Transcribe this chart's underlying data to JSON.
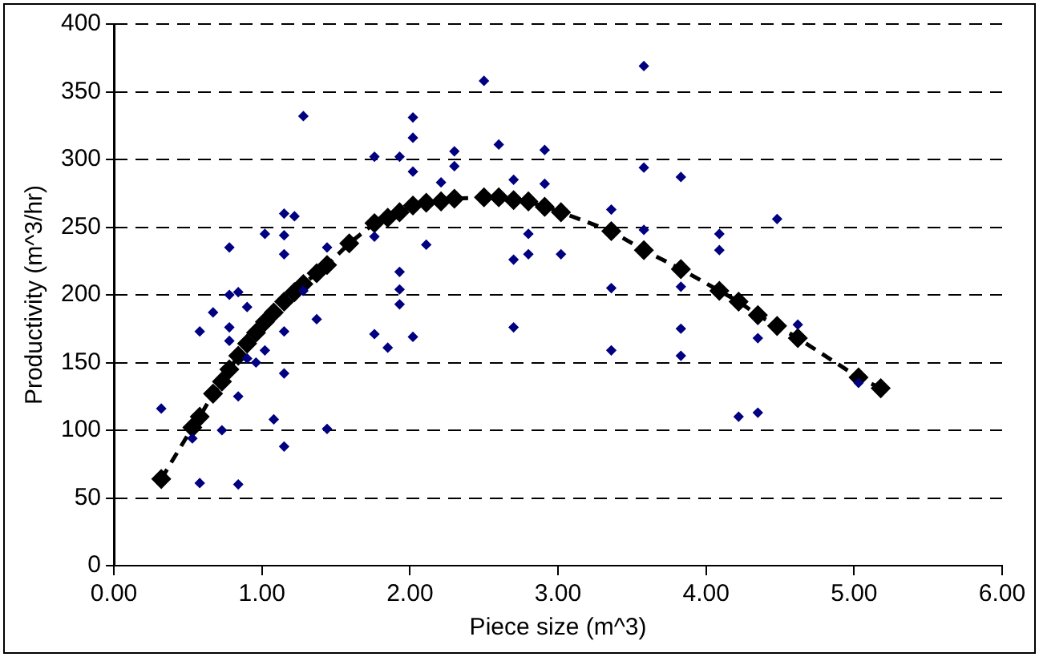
{
  "chart_data": {
    "type": "scatter",
    "xlabel": "Piece size (m^3)",
    "ylabel": "Productivity (m^3/hr)",
    "xlim": [
      0,
      6
    ],
    "ylim": [
      0,
      400
    ],
    "xticks": [
      {
        "value": 0,
        "label": "0.00"
      },
      {
        "value": 1,
        "label": "1.00"
      },
      {
        "value": 2,
        "label": "2.00"
      },
      {
        "value": 3,
        "label": "3.00"
      },
      {
        "value": 4,
        "label": "4.00"
      },
      {
        "value": 5,
        "label": "5.00"
      },
      {
        "value": 6,
        "label": "6.00"
      }
    ],
    "yticks": [
      0,
      50,
      100,
      150,
      200,
      250,
      300,
      350,
      400
    ],
    "grid": "y",
    "legend": false,
    "series": [
      {
        "color": "#000080",
        "marker": "diamond",
        "x": [
          0.32,
          0.53,
          0.58,
          0.58,
          0.67,
          0.73,
          0.78,
          0.78,
          0.78,
          0.78,
          0.84,
          0.84,
          0.84,
          0.9,
          0.9,
          0.96,
          1.02,
          1.02,
          1.08,
          1.15,
          1.15,
          1.15,
          1.15,
          1.15,
          1.15,
          1.22,
          1.28,
          1.28,
          1.37,
          1.44,
          1.44,
          1.76,
          1.76,
          1.76,
          1.85,
          1.93,
          1.93,
          1.93,
          1.93,
          2.02,
          2.02,
          2.02,
          2.02,
          2.11,
          2.21,
          2.3,
          2.3,
          2.5,
          2.6,
          2.7,
          2.7,
          2.7,
          2.8,
          2.8,
          2.91,
          2.91,
          3.02,
          3.36,
          3.36,
          3.36,
          3.58,
          3.58,
          3.58,
          3.83,
          3.83,
          3.83,
          3.83,
          4.09,
          4.09,
          4.22,
          4.35,
          4.35,
          4.48,
          4.62,
          5.03
        ],
        "values": [
          116,
          94,
          61,
          173,
          187,
          100,
          235,
          200,
          176,
          166,
          202,
          125,
          60,
          191,
          153,
          150,
          159,
          245,
          108,
          260,
          244,
          230,
          173,
          142,
          88,
          258,
          332,
          203,
          182,
          235,
          101,
          302,
          243,
          171,
          161,
          302,
          217,
          204,
          193,
          331,
          316,
          291,
          169,
          237,
          283,
          306,
          295,
          358,
          311,
          285,
          226,
          176,
          245,
          230,
          307,
          282,
          230,
          263,
          205,
          159,
          369,
          294,
          248,
          287,
          206,
          175,
          155,
          245,
          233,
          110,
          168,
          113,
          256,
          178,
          135
        ]
      },
      {
        "type": "line",
        "color": "#000000",
        "marker": "diamond",
        "line_style": "dashed",
        "x": [
          0.32,
          0.53,
          0.58,
          0.67,
          0.73,
          0.78,
          0.84,
          0.9,
          0.96,
          1.02,
          1.08,
          1.15,
          1.22,
          1.28,
          1.37,
          1.44,
          1.59,
          1.76,
          1.85,
          1.93,
          2.02,
          2.11,
          2.21,
          2.3,
          2.5,
          2.6,
          2.7,
          2.8,
          2.91,
          3.02,
          3.36,
          3.58,
          3.83,
          4.09,
          4.22,
          4.35,
          4.48,
          4.62,
          5.03,
          5.18
        ],
        "values": [
          64,
          102,
          110,
          127,
          136,
          145,
          155,
          164,
          172,
          180,
          187,
          195,
          202,
          208,
          216,
          222,
          238,
          253,
          257,
          261,
          266,
          268,
          269,
          271,
          272,
          272,
          270,
          269,
          265,
          261,
          247,
          233,
          219,
          203,
          195,
          185,
          177,
          168,
          139,
          131
        ]
      }
    ]
  }
}
